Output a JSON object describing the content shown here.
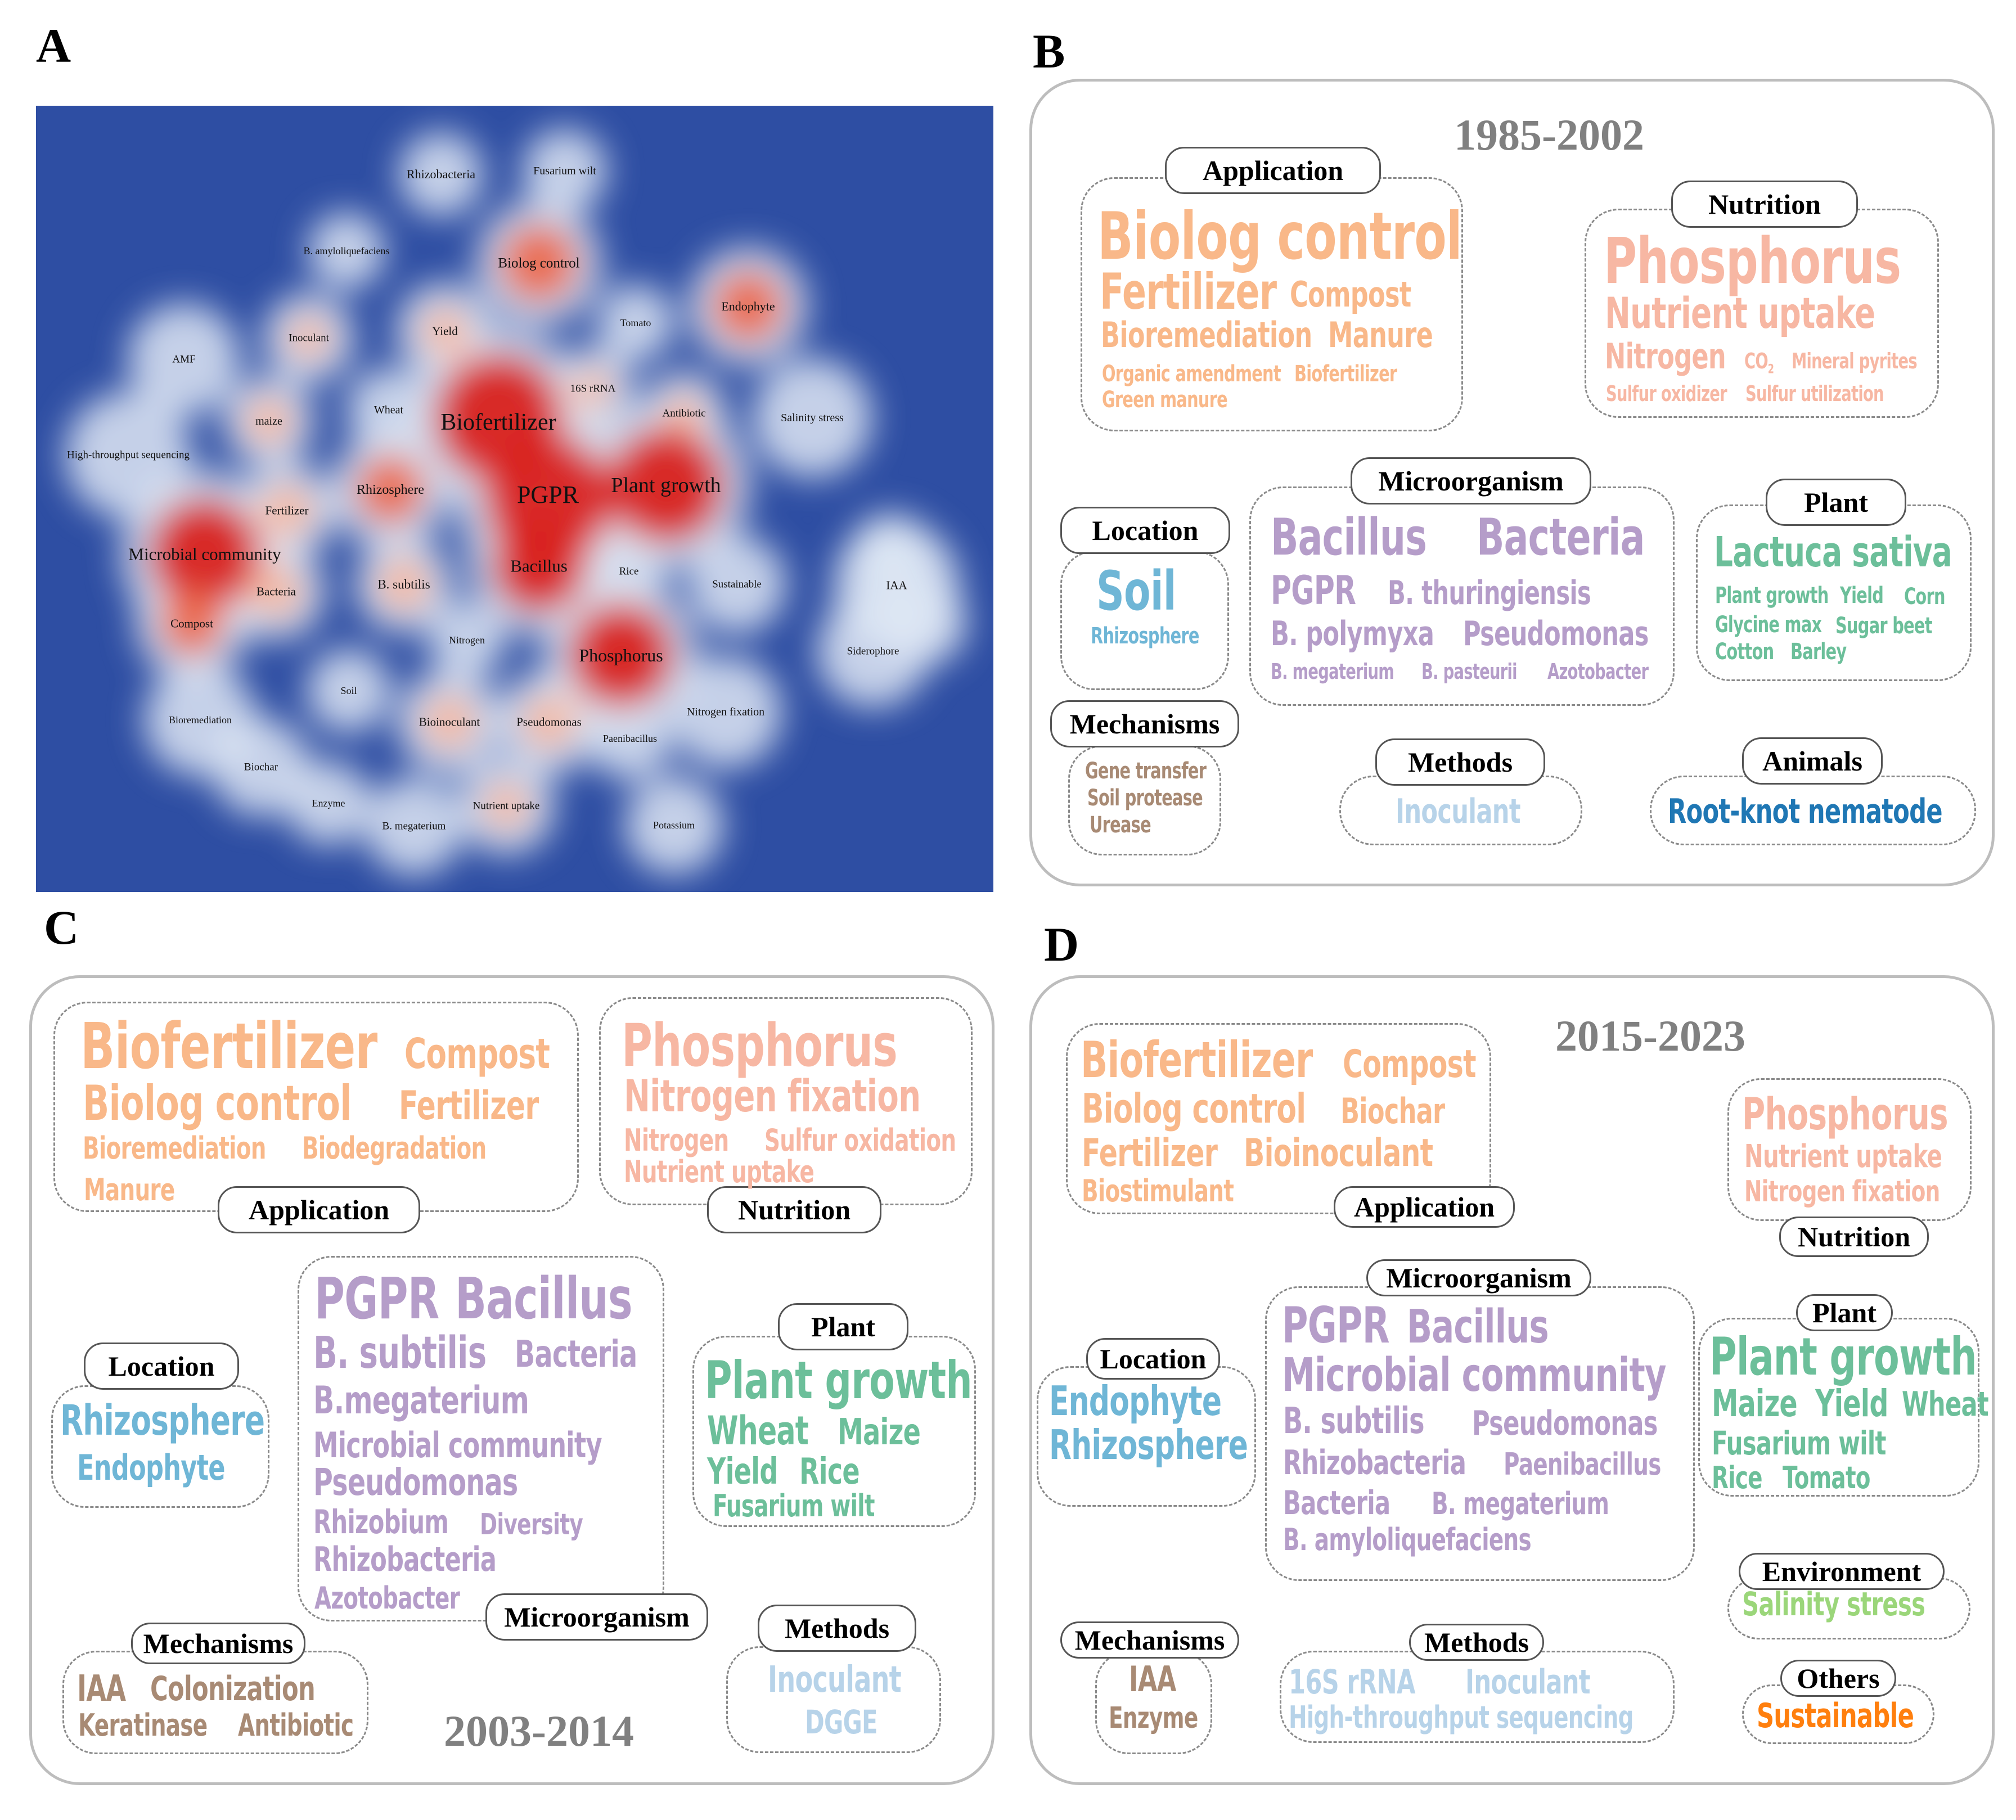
{
  "panel_labels": {
    "a": "A",
    "b": "B",
    "c": "C",
    "d": "D"
  },
  "colors": {
    "application": "#f9b889",
    "nutrition": "#f7b7a3",
    "microorganism": "#b59dc9",
    "location": "#6fb6d6",
    "plant": "#6cbf9a",
    "mechanisms": "#a88a74",
    "methods": "#b7d3e9",
    "animals": "#1f77b4",
    "environment": "#9bd67a",
    "others": "#ff7f0e"
  },
  "heatmap": {
    "keywords": [
      "Rhizobacteria",
      "Fusarium wilt",
      "B. amyloliquefaciens",
      "Biolog control",
      "Endophyte",
      "Tomato",
      "Yield",
      "Inoculant",
      "AMF",
      "16S rRNA",
      "Antibiotic",
      "Salinity stress",
      "Wheat",
      "maize",
      "Biofertilizer",
      "High-throughput sequencing",
      "Plant growth",
      "PGPR",
      "Rhizosphere",
      "Fertilizer",
      "Microbial community",
      "Bacillus",
      "Rice",
      "B. subtilis",
      "Sustainable",
      "IAA",
      "Bacteria",
      "Compost",
      "Phosphorus",
      "Nitrogen",
      "Siderophore",
      "Soil",
      "Nitrogen fixation",
      "Bioremediation",
      "Bioinoculant",
      "Pseudomonas",
      "Paenibacillus",
      "Biochar",
      "Enzyme",
      "Nutrient uptake",
      "B. megaterium",
      "Potassium"
    ]
  },
  "panel_b": {
    "year": "1985-2002",
    "categories": {
      "application": "Application",
      "nutrition": "Nutrition",
      "microorganism": "Microorganism",
      "location": "Location",
      "plant": "Plant",
      "mechanisms": "Mechanisms",
      "methods": "Methods",
      "animals": "Animals"
    },
    "application": [
      "Biolog control",
      "Fertilizer",
      "Compost",
      "Bioremediation",
      "Manure",
      "Organic amendment",
      "Biofertilizer",
      "Green manure"
    ],
    "nutrition": [
      "Phosphorus",
      "Nutrient uptake",
      "Nitrogen",
      "CO",
      "2",
      "Mineral pyrites",
      "Sulfur oxidizer",
      "Sulfur utilization"
    ],
    "microorganism": [
      "Bacillus",
      "Bacteria",
      "PGPR",
      "B. thuringiensis",
      "B. polymyxa",
      "Pseudomonas",
      "B. megaterium",
      "B. pasteurii",
      "Azotobacter"
    ],
    "location": [
      "Soil",
      "Rhizosphere"
    ],
    "plant": [
      "Lactuca sativa",
      "Plant growth",
      "Yield",
      "Corn",
      "Glycine max",
      "Sugar beet",
      "Cotton",
      "Barley"
    ],
    "mechanisms": [
      "Gene transfer",
      "Soil protease",
      "Urease"
    ],
    "methods": [
      "Inoculant"
    ],
    "animals": [
      "Root-knot nematode"
    ]
  },
  "panel_c": {
    "year": "2003-2014",
    "categories": {
      "application": "Application",
      "nutrition": "Nutrition",
      "microorganism": "Microorganism",
      "location": "Location",
      "plant": "Plant",
      "mechanisms": "Mechanisms",
      "methods": "Methods"
    },
    "application": [
      "Biofertilizer",
      "Compost",
      "Biolog control",
      "Fertilizer",
      "Bioremediation",
      "Biodegradation",
      "Manure"
    ],
    "nutrition": [
      "Phosphorus",
      "Nitrogen fixation",
      "Nitrogen",
      "Sulfur oxidation",
      "Nutrient uptake"
    ],
    "microorganism": [
      "PGPR",
      "Bacillus",
      "B. subtilis",
      "Bacteria",
      "B.megaterium",
      "Microbial community",
      "Pseudomonas",
      "Rhizobium",
      "Diversity",
      "Rhizobacteria",
      "Azotobacter"
    ],
    "location": [
      "Rhizosphere",
      "Endophyte"
    ],
    "plant": [
      "Plant growth",
      "Wheat",
      "Maize",
      "Yield",
      "Rice",
      "Fusarium wilt"
    ],
    "mechanisms": [
      "IAA",
      "Colonization",
      "Keratinase",
      "Antibiotic"
    ],
    "methods": [
      "Inoculant",
      "DGGE"
    ]
  },
  "panel_d": {
    "year": "2015-2023",
    "categories": {
      "application": "Application",
      "nutrition": "Nutrition",
      "microorganism": "Microorganism",
      "location": "Location",
      "plant": "Plant",
      "environment": "Environment",
      "mechanisms": "Mechanisms",
      "methods": "Methods",
      "others": "Others"
    },
    "application": [
      "Biofertilizer",
      "Compost",
      "Biolog control",
      "Biochar",
      "Fertilizer",
      "Bioinoculant",
      "Biostimulant"
    ],
    "nutrition": [
      "Phosphorus",
      "Nutrient uptake",
      "Nitrogen fixation"
    ],
    "microorganism": [
      "PGPR",
      "Bacillus",
      "Microbial community",
      "B. subtilis",
      "Pseudomonas",
      "Rhizobacteria",
      "Paenibacillus",
      "Bacteria",
      "B. megaterium",
      "B. amyloliquefaciens"
    ],
    "location": [
      "Endophyte",
      "Rhizosphere"
    ],
    "plant": [
      "Plant growth",
      "Maize",
      "Yield",
      "Wheat",
      "Fusarium wilt",
      "Rice",
      "Tomato"
    ],
    "environment": [
      "Salinity stress"
    ],
    "mechanisms": [
      "IAA",
      "Enzyme"
    ],
    "methods": [
      "16S rRNA",
      "Inoculant",
      "High-throughput sequencing"
    ],
    "others": [
      "Sustainable"
    ]
  }
}
